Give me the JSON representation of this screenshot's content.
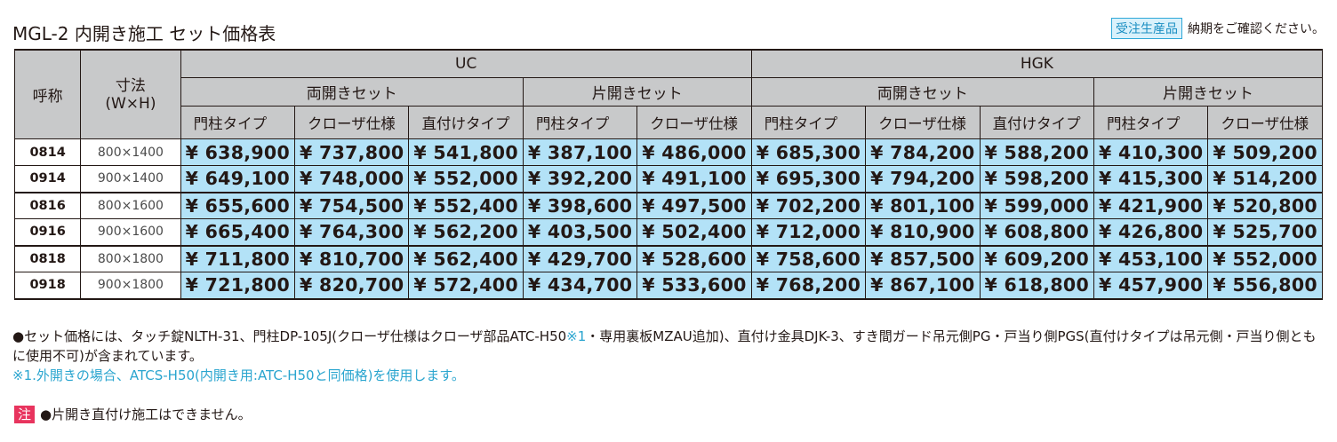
{
  "title": "MGL-2 内開き施工 セット価格表",
  "order_badge": "受注生産品",
  "order_note": "納期をご確認ください。",
  "table": {
    "header_name": "呼称",
    "header_size": "寸法",
    "header_size_sub": "(W×H)",
    "groups": [
      "UC",
      "HGK"
    ],
    "subgroups": [
      "両開きセット",
      "片開きセット",
      "両開きセット",
      "片開きセット"
    ],
    "types": [
      "門柱タイプ",
      "クローザ仕様",
      "直付けタイプ",
      "門柱タイプ",
      "クローザ仕様",
      "門柱タイプ",
      "クローザ仕様",
      "直付けタイプ",
      "門柱タイプ",
      "クローザ仕様"
    ],
    "rows": [
      {
        "code": "0814",
        "size": "800×1400",
        "prices": [
          "¥ 638,900",
          "¥ 737,800",
          "¥ 541,800",
          "¥ 387,100",
          "¥ 486,000",
          "¥ 685,300",
          "¥ 784,200",
          "¥ 588,200",
          "¥ 410,300",
          "¥ 509,200"
        ]
      },
      {
        "code": "0914",
        "size": "900×1400",
        "prices": [
          "¥ 649,100",
          "¥ 748,000",
          "¥ 552,000",
          "¥ 392,200",
          "¥ 491,100",
          "¥ 695,300",
          "¥ 794,200",
          "¥ 598,200",
          "¥ 415,300",
          "¥ 514,200"
        ]
      },
      {
        "code": "0816",
        "size": "800×1600",
        "prices": [
          "¥ 655,600",
          "¥ 754,500",
          "¥ 552,400",
          "¥ 398,600",
          "¥ 497,500",
          "¥ 702,200",
          "¥ 801,100",
          "¥ 599,000",
          "¥ 421,900",
          "¥ 520,800"
        ]
      },
      {
        "code": "0916",
        "size": "900×1600",
        "prices": [
          "¥ 665,400",
          "¥ 764,300",
          "¥ 562,200",
          "¥ 403,500",
          "¥ 502,400",
          "¥ 712,000",
          "¥ 810,900",
          "¥ 608,800",
          "¥ 426,800",
          "¥ 525,700"
        ]
      },
      {
        "code": "0818",
        "size": "800×1800",
        "prices": [
          "¥ 711,800",
          "¥ 810,700",
          "¥ 562,400",
          "¥ 429,700",
          "¥ 528,600",
          "¥ 758,600",
          "¥ 857,500",
          "¥ 609,200",
          "¥ 453,100",
          "¥ 552,000"
        ]
      },
      {
        "code": "0918",
        "size": "900×1800",
        "prices": [
          "¥ 721,800",
          "¥ 820,700",
          "¥ 572,400",
          "¥ 434,700",
          "¥ 533,600",
          "¥ 768,200",
          "¥ 867,100",
          "¥ 618,800",
          "¥ 457,900",
          "¥ 556,800"
        ]
      }
    ]
  },
  "notes": {
    "line1_a": "●セット価格には、タッチ錠NLTH-31、門柱DP-105J(クローザ仕様はクローザ部品ATC-H50",
    "line1_mark": "※1",
    "line1_b": "・専用裏板MZAU追加)、直付け金具DJK-3、すき間ガード吊元側PG・戸当り側PGS(直付けタイプは吊元側・戸当り側ともに使用不可)が含まれています。",
    "line2": "※1.外開きの場合、ATCS-H50(内開き用:ATC-H50と同価格)を使用します。",
    "caution_badge": "注",
    "caution_text": "●片開き直付け施工はできません。"
  },
  "colors": {
    "header_gray": "#c8c9ca",
    "price_cyan": "#b3e2f7",
    "accent_teal": "#2aa5cf",
    "caution_pink": "#e8345e"
  }
}
